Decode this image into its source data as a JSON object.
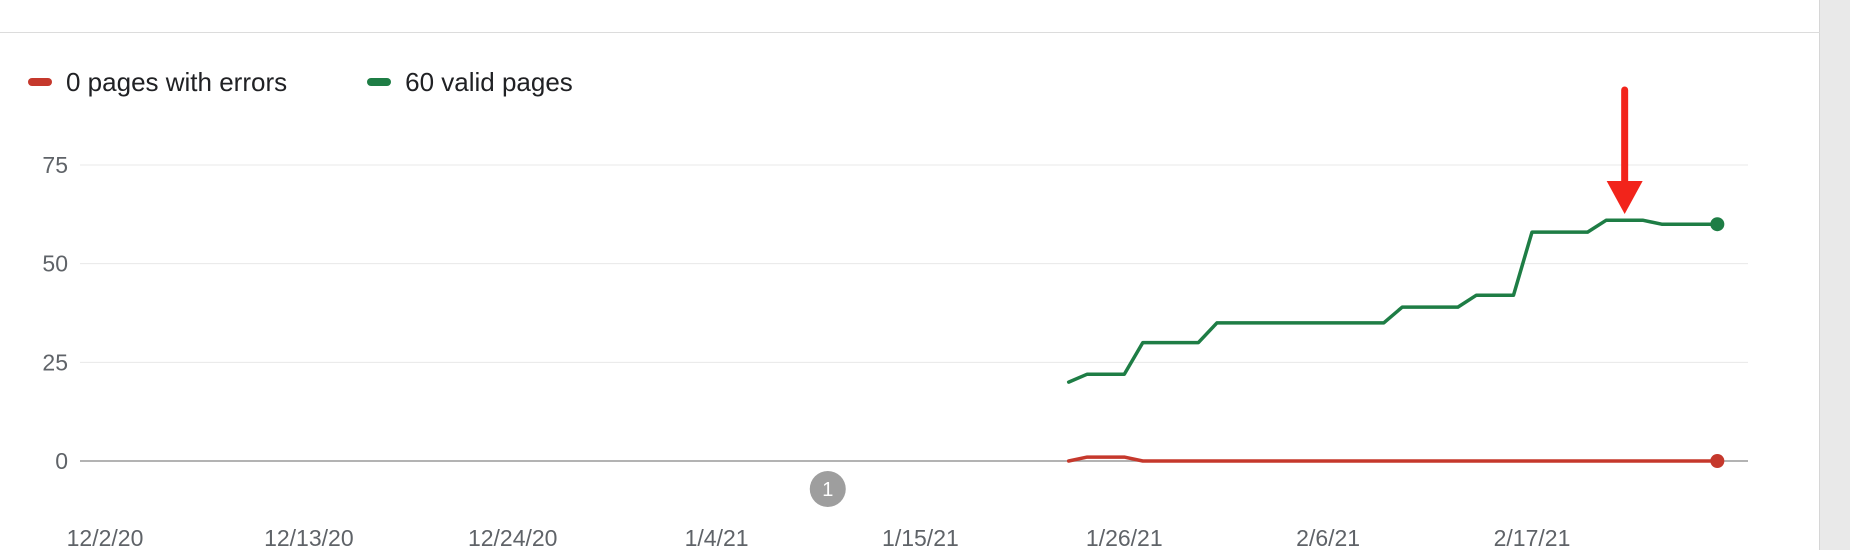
{
  "legend": {
    "errors_label": "0 pages with errors",
    "valid_label": "60 valid pages"
  },
  "colors": {
    "errors": "#c5382c",
    "valid": "#1e7d45",
    "arrow": "#f2241b",
    "annotation": "#9e9e9e",
    "grid": "#e8e8e8",
    "baseline": "#9a9a9a"
  },
  "chart_data": {
    "type": "line",
    "ylim": [
      0,
      75
    ],
    "y_ticks": [
      0,
      25,
      50,
      75
    ],
    "x_tick_labels": [
      "12/2/20",
      "12/13/20",
      "12/24/20",
      "1/4/21",
      "1/15/21",
      "1/26/21",
      "2/6/21",
      "2/17/21"
    ],
    "grid": true,
    "legend_position": "top-left",
    "series": [
      {
        "name": "0 pages with errors",
        "x": [
          "1/23/21",
          "1/24/21",
          "1/25/21",
          "1/26/21",
          "1/27/21",
          "1/28/21",
          "1/29/21",
          "1/30/21",
          "1/31/21",
          "2/1/21",
          "2/2/21",
          "2/3/21",
          "2/4/21",
          "2/5/21",
          "2/6/21",
          "2/7/21",
          "2/8/21",
          "2/9/21",
          "2/10/21",
          "2/11/21",
          "2/12/21",
          "2/13/21",
          "2/14/21",
          "2/15/21",
          "2/16/21",
          "2/17/21",
          "2/18/21",
          "2/19/21",
          "2/20/21",
          "2/21/21",
          "2/22/21",
          "2/23/21",
          "2/24/21",
          "2/25/21",
          "2/26/21",
          "2/27/21"
        ],
        "values": [
          0,
          1,
          1,
          1,
          0,
          0,
          0,
          0,
          0,
          0,
          0,
          0,
          0,
          0,
          0,
          0,
          0,
          0,
          0,
          0,
          0,
          0,
          0,
          0,
          0,
          0,
          0,
          0,
          0,
          0,
          0,
          0,
          0,
          0,
          0,
          0
        ]
      },
      {
        "name": "60 valid pages",
        "x": [
          "1/23/21",
          "1/24/21",
          "1/25/21",
          "1/26/21",
          "1/27/21",
          "1/28/21",
          "1/29/21",
          "1/30/21",
          "1/31/21",
          "2/1/21",
          "2/2/21",
          "2/3/21",
          "2/4/21",
          "2/5/21",
          "2/6/21",
          "2/7/21",
          "2/8/21",
          "2/9/21",
          "2/10/21",
          "2/11/21",
          "2/12/21",
          "2/13/21",
          "2/14/21",
          "2/15/21",
          "2/16/21",
          "2/17/21",
          "2/18/21",
          "2/19/21",
          "2/20/21",
          "2/21/21",
          "2/22/21",
          "2/23/21",
          "2/24/21",
          "2/25/21",
          "2/26/21",
          "2/27/21"
        ],
        "values": [
          20,
          22,
          22,
          22,
          30,
          30,
          30,
          30,
          35,
          35,
          35,
          35,
          35,
          35,
          35,
          35,
          35,
          35,
          39,
          39,
          39,
          39,
          42,
          42,
          42,
          58,
          58,
          58,
          58,
          61,
          61,
          61,
          60,
          60,
          60,
          60
        ]
      }
    ],
    "annotations": [
      {
        "label": "1",
        "x": "1/10/21"
      }
    ],
    "arrow_marker": {
      "x": "2/22/21"
    }
  }
}
